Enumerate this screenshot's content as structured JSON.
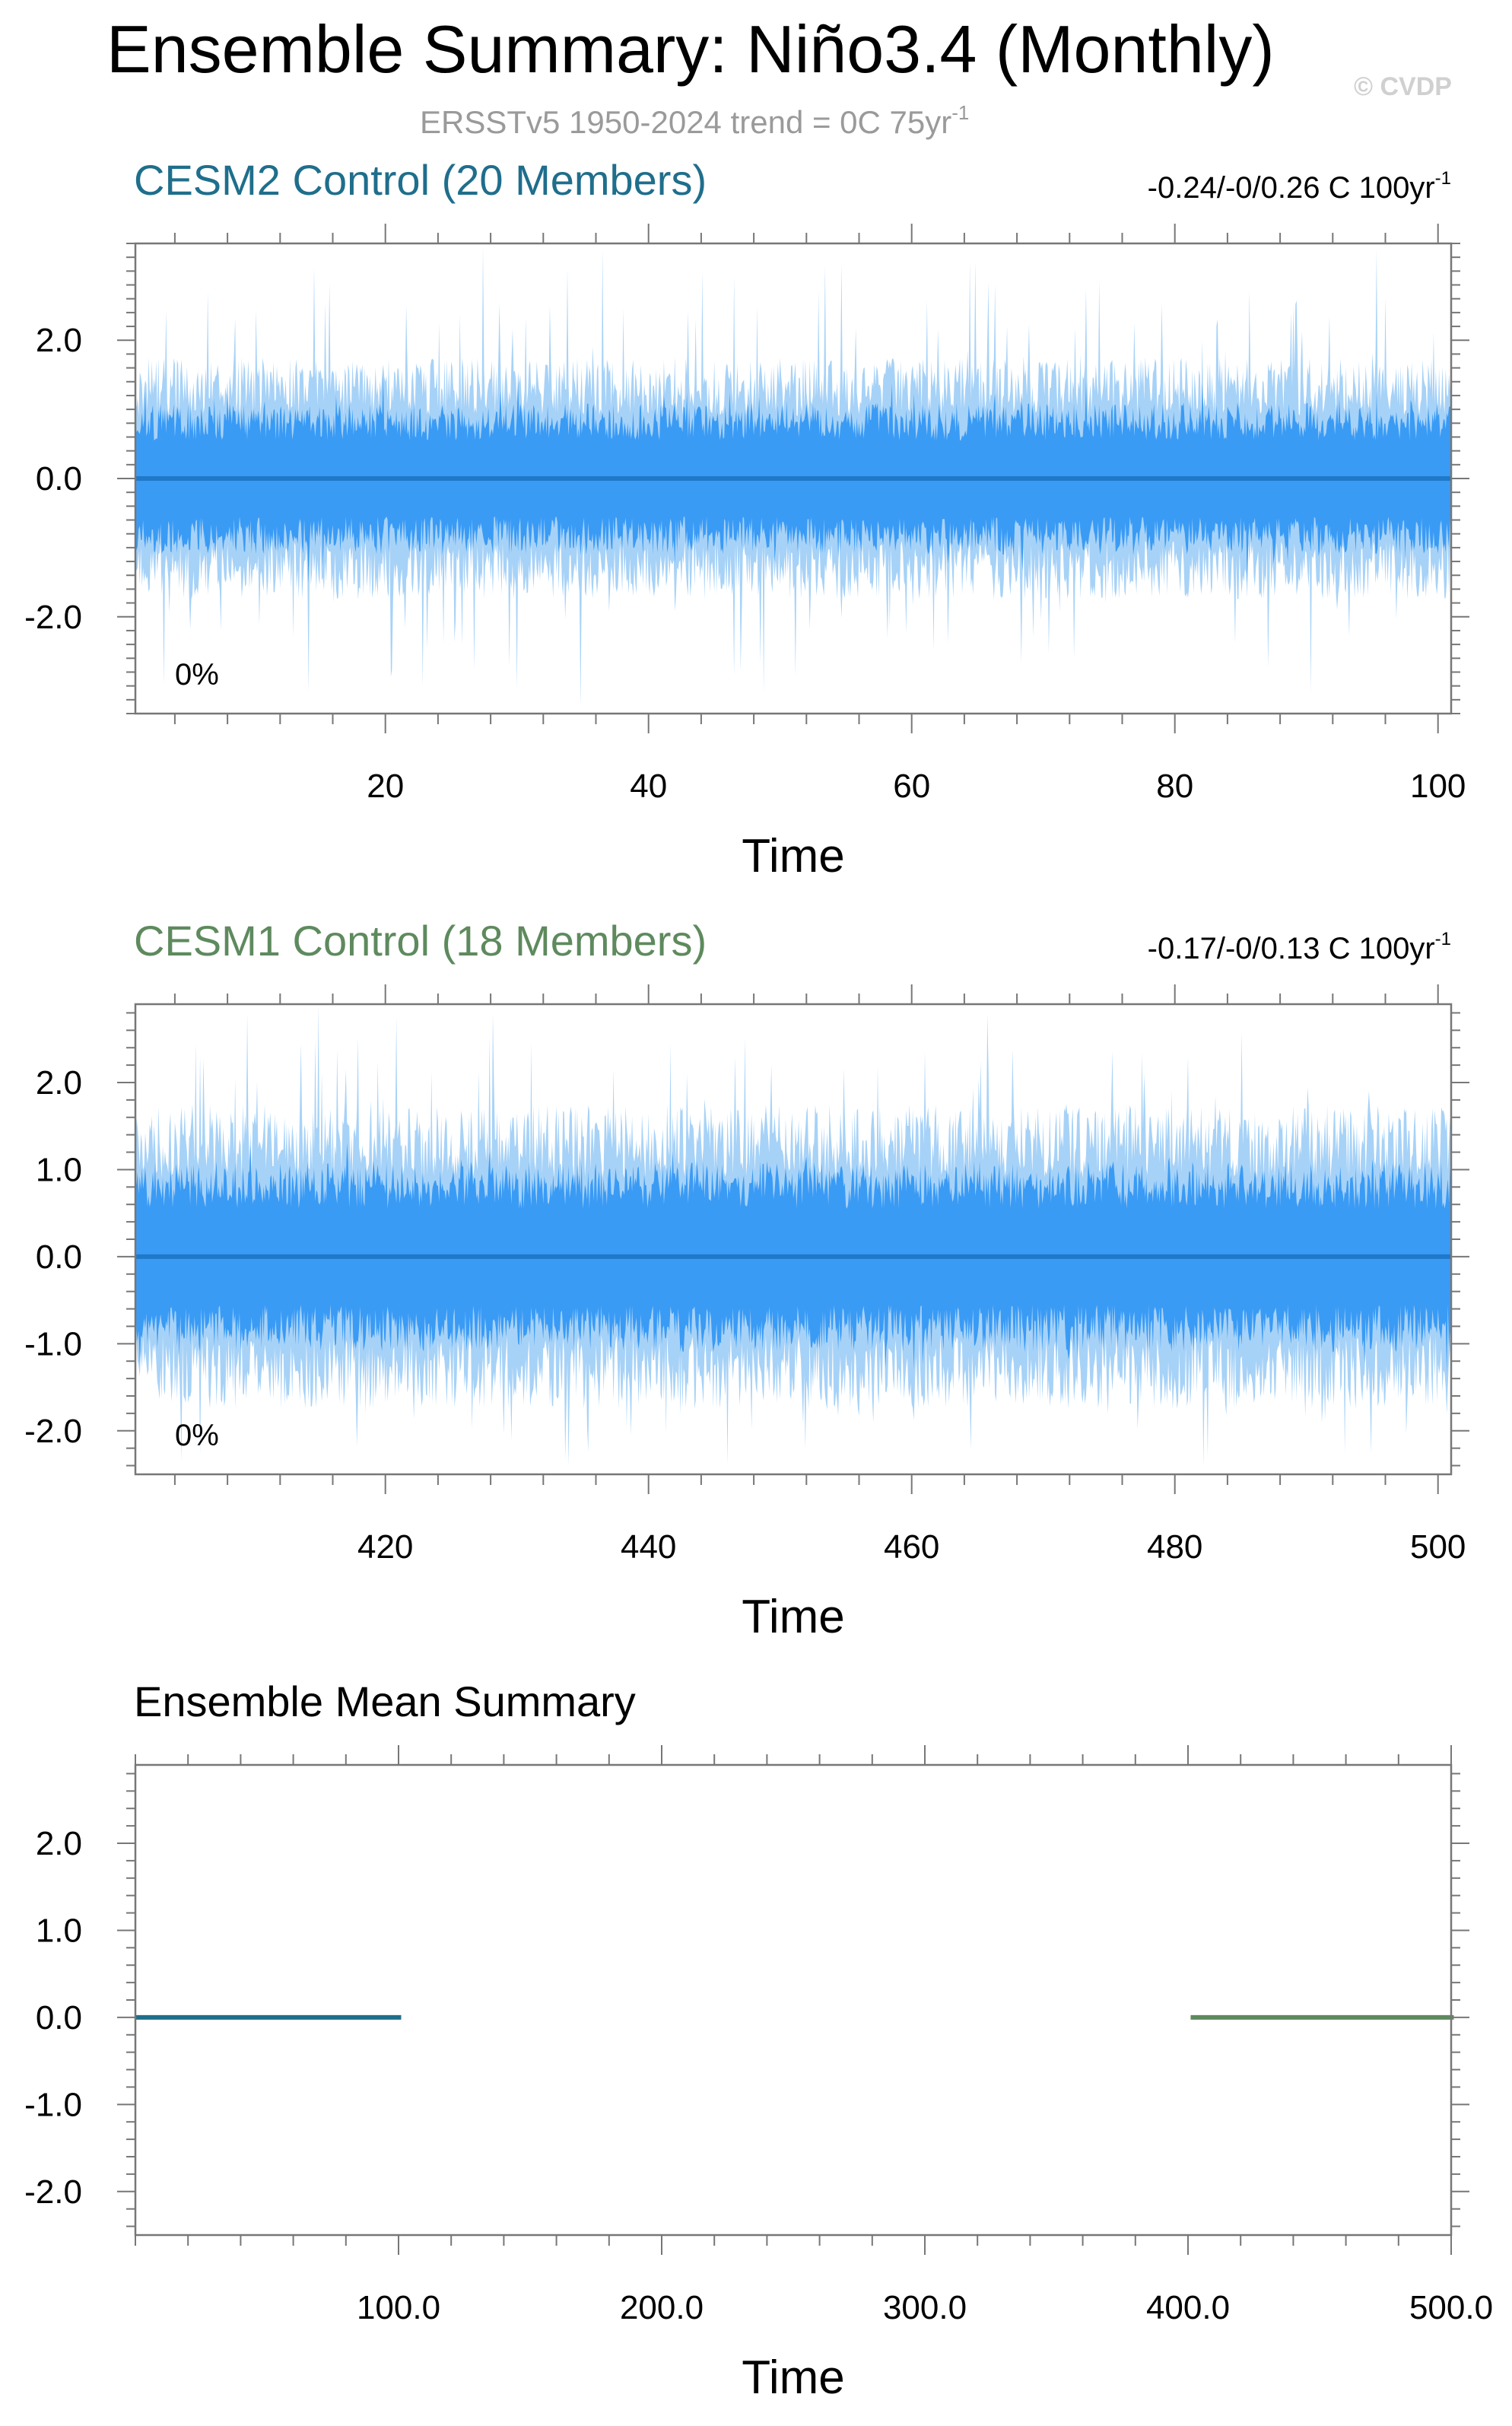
{
  "header": {
    "title": "Ensemble Summary: Niño3.4 (Monthly)",
    "watermark": "© CVDP",
    "obs_trend": "ERSSTv5 1950-2024 trend = 0C 75yr",
    "obs_trend_sup": "-1"
  },
  "colors": {
    "cesm2": "#1F6E8C",
    "cesm1": "#5E8A5E",
    "band_outer": "#A7D2F7",
    "band_inner": "#3A9BF5",
    "mean_line": "#1F78C8",
    "axis": "#000000",
    "obs_text": "#9A9A9A",
    "watermark": "#D0D0D0"
  },
  "chart_data": [
    {
      "type": "area",
      "title": "CESM2 Control (20 Members)",
      "trend_label": "-0.24/-0/0.26 C 100yr",
      "trend_sup": "-1",
      "annotation": "0%",
      "xlabel": "Time",
      "xlim": [
        1,
        101
      ],
      "ylim": [
        -3.4,
        3.4
      ],
      "xticks": [
        20,
        40,
        60,
        80,
        100
      ],
      "xtick_labels": [
        "20",
        "40",
        "60",
        "80",
        "100"
      ],
      "yticks": [
        2.0,
        0.0,
        -2.0
      ],
      "ytick_labels": [
        "2.0",
        "0.0",
        "-2.0"
      ],
      "series": [
        {
          "role": "ensemble-mean",
          "value": 0.0
        },
        {
          "role": "min-max-envelope",
          "approx_range": [
            -3.3,
            3.4
          ]
        },
        {
          "role": "inner-percentile-envelope",
          "approx_range": [
            -1.6,
            1.6
          ]
        }
      ],
      "seed": 17
    },
    {
      "type": "area",
      "title": "CESM1 Control (18 Members)",
      "trend_label": "-0.17/-0/0.13 C 100yr",
      "trend_sup": "-1",
      "annotation": "0%",
      "xlabel": "Time",
      "xlim": [
        401,
        501
      ],
      "ylim": [
        -2.5,
        2.9
      ],
      "xticks": [
        420,
        440,
        460,
        480,
        500
      ],
      "xtick_labels": [
        "420",
        "440",
        "460",
        "480",
        "500"
      ],
      "yticks": [
        2.0,
        1.0,
        0.0,
        -1.0,
        -2.0
      ],
      "ytick_labels": [
        "2.0",
        "1.0",
        "0.0",
        "-1.0",
        "-2.0"
      ],
      "series": [
        {
          "role": "ensemble-mean",
          "value": 0.0
        },
        {
          "role": "min-max-envelope",
          "approx_range": [
            -2.4,
            2.9
          ]
        },
        {
          "role": "inner-percentile-envelope",
          "approx_range": [
            -1.4,
            1.3
          ]
        }
      ],
      "seed": 91
    },
    {
      "type": "line",
      "title": "Ensemble Mean Summary",
      "xlabel": "Time",
      "xlim": [
        0,
        500
      ],
      "ylim": [
        -2.5,
        2.9
      ],
      "xticks": [
        100,
        200,
        300,
        400,
        500
      ],
      "xtick_labels": [
        "100.0",
        "200.0",
        "300.0",
        "400.0",
        "500.0"
      ],
      "yticks": [
        2.0,
        1.0,
        0.0,
        -1.0,
        -2.0
      ],
      "ytick_labels": [
        "2.0",
        "1.0",
        "0.0",
        "-1.0",
        "-2.0"
      ],
      "series": [
        {
          "x": [
            0,
            101
          ],
          "y": [
            0.0,
            0.0
          ],
          "color_key": "cesm2"
        },
        {
          "x": [
            401,
            501
          ],
          "y": [
            0.0,
            0.0
          ],
          "color_key": "cesm1"
        }
      ]
    }
  ]
}
